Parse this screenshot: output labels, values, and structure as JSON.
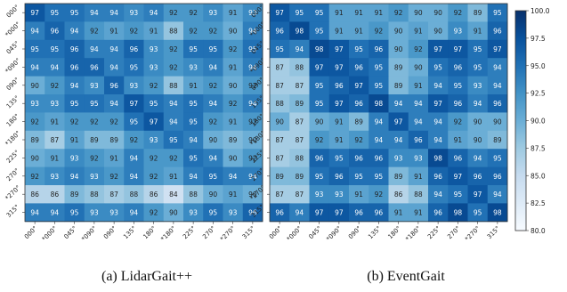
{
  "chart_data": [
    {
      "type": "heatmap",
      "title": "",
      "rows": [
        "000°",
        "*000°",
        "045°",
        "*090°",
        "090°",
        "135°",
        "180°",
        "*180°",
        "225°",
        "270°",
        "*270°",
        "315°"
      ],
      "cols": [
        "000°",
        "*000°",
        "045°",
        "*090°",
        "090°",
        "135°",
        "180°",
        "*180°",
        "225°",
        "270°",
        "*270°",
        "315°"
      ],
      "values": [
        [
          97,
          95,
          95,
          94,
          94,
          93,
          94,
          92,
          92,
          93,
          91,
          93
        ],
        [
          94,
          96,
          94,
          92,
          91,
          92,
          91,
          88,
          92,
          92,
          90,
          94
        ],
        [
          95,
          95,
          96,
          94,
          94,
          96,
          93,
          92,
          95,
          95,
          92,
          95
        ],
        [
          94,
          94,
          96,
          96,
          94,
          95,
          93,
          92,
          93,
          94,
          91,
          94
        ],
        [
          90,
          92,
          94,
          93,
          96,
          93,
          92,
          88,
          91,
          92,
          90,
          92
        ],
        [
          93,
          93,
          95,
          95,
          94,
          97,
          95,
          94,
          95,
          94,
          92,
          94
        ],
        [
          92,
          91,
          92,
          92,
          92,
          95,
          97,
          94,
          95,
          92,
          91,
          92
        ],
        [
          89,
          87,
          91,
          89,
          89,
          92,
          93,
          95,
          94,
          90,
          89,
          90
        ],
        [
          90,
          91,
          93,
          92,
          91,
          94,
          92,
          92,
          95,
          94,
          90,
          92
        ],
        [
          92,
          93,
          94,
          93,
          92,
          94,
          92,
          91,
          94,
          95,
          94,
          94
        ],
        [
          86,
          86,
          89,
          88,
          87,
          88,
          86,
          84,
          88,
          90,
          91,
          90
        ],
        [
          94,
          94,
          95,
          93,
          93,
          94,
          92,
          90,
          93,
          95,
          93,
          96
        ]
      ],
      "caption": "(a) LidarGait++"
    },
    {
      "type": "heatmap",
      "title": "",
      "rows": [
        "000°",
        "*000°",
        "045°",
        "*090°",
        "090°",
        "135°",
        "180°",
        "*180°",
        "225°",
        "270°",
        "*270°",
        "315°"
      ],
      "cols": [
        "000°",
        "*000°",
        "045°",
        "*090°",
        "090°",
        "135°",
        "180°",
        "*180°",
        "225°",
        "270°",
        "*270°",
        "315°"
      ],
      "values": [
        [
          97,
          95,
          95,
          91,
          91,
          91,
          92,
          90,
          90,
          92,
          89,
          95
        ],
        [
          96,
          98,
          95,
          91,
          91,
          92,
          90,
          91,
          90,
          93,
          91,
          96
        ],
        [
          95,
          94,
          98,
          97,
          95,
          96,
          90,
          92,
          97,
          97,
          95,
          97
        ],
        [
          87,
          88,
          97,
          97,
          96,
          95,
          89,
          90,
          95,
          96,
          95,
          94
        ],
        [
          87,
          87,
          95,
          96,
          97,
          95,
          89,
          91,
          94,
          95,
          93,
          94
        ],
        [
          88,
          89,
          95,
          97,
          96,
          98,
          94,
          94,
          97,
          96,
          94,
          96
        ],
        [
          90,
          87,
          90,
          91,
          89,
          94,
          97,
          94,
          94,
          92,
          90,
          90
        ],
        [
          87,
          87,
          92,
          91,
          92,
          94,
          94,
          96,
          94,
          91,
          90,
          89
        ],
        [
          87,
          88,
          96,
          95,
          96,
          96,
          93,
          93,
          98,
          96,
          94,
          95
        ],
        [
          89,
          89,
          95,
          96,
          95,
          95,
          89,
          91,
          96,
          97,
          96,
          96
        ],
        [
          87,
          87,
          93,
          93,
          91,
          92,
          86,
          88,
          94,
          95,
          97,
          94
        ],
        [
          96,
          94,
          97,
          97,
          96,
          96,
          91,
          91,
          96,
          98,
          95,
          98
        ]
      ],
      "caption": "(b) EventGait"
    }
  ],
  "colorbar": {
    "min": 80.0,
    "max": 100.0,
    "ticks": [
      "100.0",
      "97.5",
      "95.0",
      "92.5",
      "90.0",
      "87.5",
      "85.0",
      "82.5",
      "80.0"
    ],
    "colors": [
      "#f7fbff",
      "#deebf7",
      "#c6dbef",
      "#9ecae1",
      "#6baed6",
      "#4292c6",
      "#2171b5",
      "#08519c",
      "#08306b"
    ]
  }
}
